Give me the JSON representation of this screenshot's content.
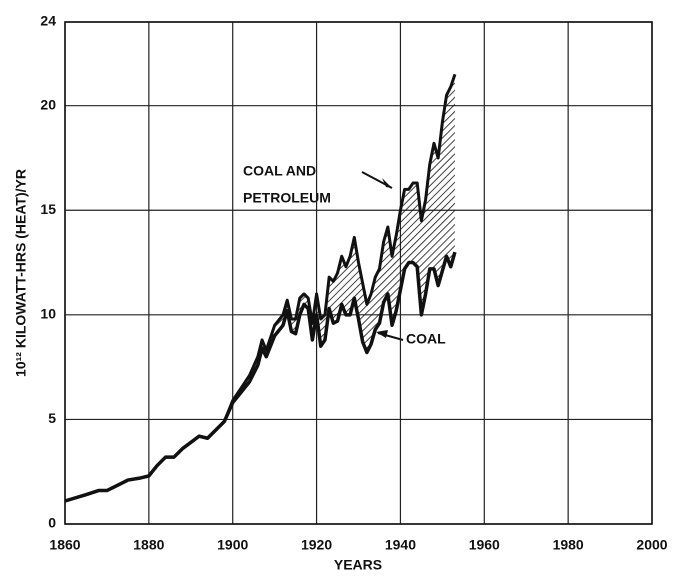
{
  "chart_data": {
    "type": "line",
    "xlabel": "YEARS",
    "ylabel": "10¹² KILOWATT-HRS (HEAT)/YR",
    "x": [
      1860,
      1865,
      1868,
      1870,
      1873,
      1875,
      1878,
      1880,
      1882,
      1884,
      1886,
      1888,
      1890,
      1892,
      1894,
      1896,
      1898,
      1900,
      1902,
      1904,
      1906,
      1907,
      1908,
      1910,
      1912,
      1913,
      1914,
      1915,
      1916,
      1917,
      1918,
      1919,
      1920,
      1921,
      1922,
      1923,
      1924,
      1925,
      1926,
      1927,
      1928,
      1929,
      1930,
      1931,
      1932,
      1933,
      1934,
      1935,
      1936,
      1937,
      1938,
      1939,
      1940,
      1941,
      1942,
      1943,
      1944,
      1945,
      1946,
      1947,
      1948,
      1949,
      1950,
      1951,
      1952,
      1953
    ],
    "series": [
      {
        "name": "COAL",
        "color": "#111111",
        "values": [
          1.1,
          1.4,
          1.6,
          1.6,
          1.9,
          2.1,
          2.2,
          2.3,
          2.8,
          3.2,
          3.2,
          3.6,
          3.9,
          4.2,
          4.1,
          4.5,
          4.9,
          5.8,
          6.3,
          6.8,
          7.6,
          8.4,
          8.0,
          9.0,
          9.5,
          10.2,
          9.2,
          9.1,
          10.0,
          10.5,
          10.3,
          8.8,
          10.0,
          8.5,
          8.8,
          10.3,
          9.6,
          9.7,
          10.5,
          10.0,
          10.0,
          10.8,
          9.8,
          8.7,
          8.2,
          8.6,
          9.3,
          9.6,
          10.6,
          11.0,
          9.5,
          10.2,
          11.2,
          12.2,
          12.5,
          12.5,
          12.3,
          10.0,
          11.0,
          12.2,
          12.2,
          11.4,
          12.1,
          12.8,
          12.3,
          13.0
        ]
      },
      {
        "name": "COAL AND PETROLEUM",
        "color": "#111111",
        "values": [
          1.1,
          1.4,
          1.6,
          1.6,
          1.9,
          2.1,
          2.2,
          2.3,
          2.8,
          3.2,
          3.2,
          3.6,
          3.9,
          4.2,
          4.1,
          4.5,
          4.9,
          5.9,
          6.5,
          7.1,
          8.0,
          8.8,
          8.3,
          9.5,
          10.0,
          10.7,
          9.8,
          9.8,
          10.8,
          11.0,
          10.8,
          9.6,
          11.0,
          9.8,
          10.0,
          11.8,
          11.6,
          12.0,
          12.8,
          12.3,
          12.8,
          13.7,
          12.5,
          11.5,
          10.5,
          11.0,
          11.8,
          12.2,
          13.5,
          14.2,
          12.8,
          13.8,
          15.0,
          16.0,
          16.0,
          16.3,
          16.3,
          14.5,
          15.5,
          17.2,
          18.2,
          17.5,
          19.2,
          20.5,
          20.9,
          21.5
        ]
      }
    ],
    "annotations": [
      "COAL AND",
      "PETROLEUM",
      "COAL"
    ],
    "xlim": [
      1860,
      2000
    ],
    "xticks": [
      1860,
      1880,
      1900,
      1920,
      1940,
      1960,
      1980,
      2000
    ],
    "ylim": [
      0,
      24
    ],
    "yticks": [
      0,
      5,
      10,
      15,
      20,
      24
    ],
    "grid": true,
    "hatch": true
  }
}
